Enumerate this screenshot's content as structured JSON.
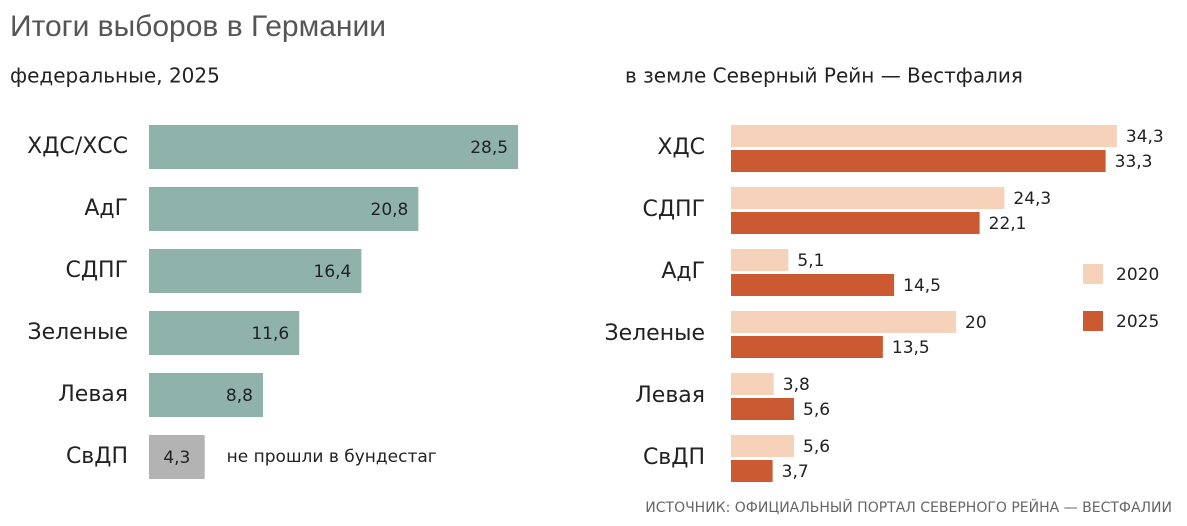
{
  "title": "Итоги  выборов в Германии",
  "source": "ИСТОЧНИК: ОФИЦИАЛЬНЫЙ ПОРТАЛ СЕВЕРНОГО РЕЙНА — ВЕСТФАЛИИ",
  "chart_data": [
    {
      "type": "bar",
      "orientation": "horizontal",
      "subtitle": "федеральные, 2025",
      "categories": [
        "ХДС/ХСС",
        "АдГ",
        "СДПГ",
        "Зеленые",
        "Левая",
        "СвДП"
      ],
      "values": [
        28.5,
        20.8,
        16.4,
        11.6,
        8.8,
        4.3
      ],
      "value_labels": [
        "28,5",
        "20,8",
        "16,4",
        "11,6",
        "8,8",
        "4,3"
      ],
      "colors": [
        "#8fb3ab",
        "#8fb3ab",
        "#8fb3ab",
        "#8fb3ab",
        "#8fb3ab",
        "#b3b3b3"
      ],
      "annotation": "не прошли в бундестаг"
    },
    {
      "type": "bar",
      "orientation": "horizontal",
      "subtitle": "в земле Северный Рейн — Вестфалия",
      "categories": [
        "ХДС",
        "СДПГ",
        "АдГ",
        "Зеленые",
        "Левая",
        "СвДП"
      ],
      "legend": "right",
      "series": [
        {
          "name": "2020",
          "color": "#f6d2bb",
          "values": [
            34.3,
            24.3,
            5.1,
            20,
            3.8,
            5.6
          ],
          "value_labels": [
            "34,3",
            "24,3",
            "5,1",
            "20",
            "3,8",
            "5,6"
          ]
        },
        {
          "name": "2025",
          "color": "#cb5a33",
          "values": [
            33.3,
            22.1,
            14.5,
            13.5,
            5.6,
            3.7
          ],
          "value_labels": [
            "33,3",
            "22,1",
            "14,5",
            "13,5",
            "5,6",
            "3,7"
          ]
        }
      ]
    }
  ]
}
